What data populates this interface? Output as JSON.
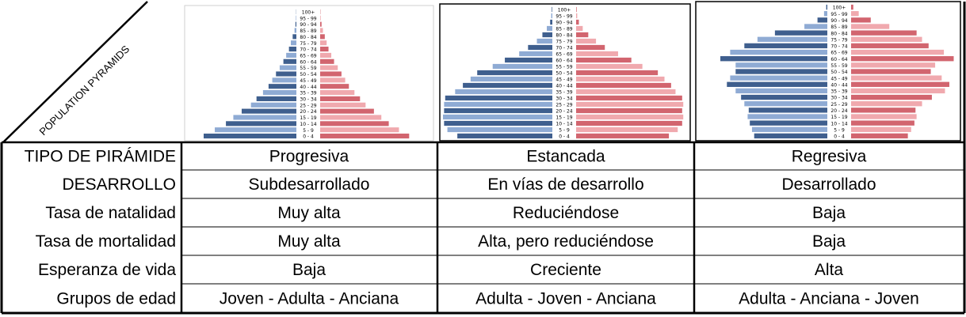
{
  "corner_label": "POPULATION PYRAMIDS",
  "table": {
    "columns": [
      "Progresiva",
      "Estancada",
      "Regresiva"
    ],
    "rows": [
      {
        "label": "TIPO DE PIRÁMIDE",
        "values": [
          "Progresiva",
          "Estancada",
          "Regresiva"
        ]
      },
      {
        "label": "DESARROLLO",
        "values": [
          "Subdesarrollado",
          "En vías de desarrollo",
          "Desarrollado"
        ]
      },
      {
        "label": "Tasa de natalidad",
        "values": [
          "Muy alta",
          "Reduciéndose",
          "Baja"
        ]
      },
      {
        "label": "Tasa de mortalidad",
        "values": [
          "Muy alta",
          "Alta, pero reduciéndose",
          "Baja"
        ]
      },
      {
        "label": "Esperanza de vida",
        "values": [
          "Baja",
          "Creciente",
          "Alta"
        ]
      },
      {
        "label": "Grupos de edad",
        "values": [
          "Joven - Adulta - Anciana",
          "Adulta - Joven - Anciana",
          "Adulta - Anciana - Joven"
        ]
      }
    ]
  },
  "colors": {
    "male_dark": "#3f5f8e",
    "male_light": "#8fabd4",
    "female_dark": "#d2656f",
    "female_light": "#f0a9ae"
  },
  "chart_data": [
    {
      "type": "bar",
      "orientation": "horizontal-pyramid",
      "categories": [
        "0 - 4",
        "5 - 9",
        "10 - 14",
        "15 - 19",
        "20 - 24",
        "25 - 29",
        "30 - 34",
        "35 - 39",
        "40 - 44",
        "45 - 49",
        "50 - 54",
        "55 - 59",
        "60 - 64",
        "65 - 69",
        "70 - 74",
        "75 - 79",
        "80 - 84",
        "85 - 89",
        "90 - 94",
        "95 - 99",
        "100+"
      ],
      "series": [
        {
          "values": [
            10.0,
            8.8,
            7.6,
            6.8,
            5.9,
            4.9,
            4.3,
            3.6,
            3.0,
            2.6,
            2.2,
            1.8,
            1.4,
            1.1,
            0.8,
            0.6,
            0.4,
            0.2,
            0.1,
            0.05,
            0.02
          ]
        },
        {
          "values": [
            9.6,
            8.5,
            7.4,
            6.6,
            5.8,
            4.9,
            4.3,
            3.7,
            3.1,
            2.7,
            2.3,
            1.9,
            1.5,
            1.2,
            0.9,
            0.7,
            0.5,
            0.3,
            0.15,
            0.06,
            0.03
          ]
        }
      ]
    },
    {
      "type": "bar",
      "orientation": "horizontal-pyramid",
      "categories": [
        "0 - 4",
        "5 - 9",
        "10 - 14",
        "15 - 19",
        "20 - 24",
        "25 - 29",
        "30 - 34",
        "35 - 39",
        "40 - 44",
        "45 - 49",
        "50 - 54",
        "55 - 59",
        "60 - 64",
        "65 - 69",
        "70 - 74",
        "75 - 79",
        "80 - 84",
        "85 - 89",
        "90 - 94",
        "95 - 99",
        "100+"
      ],
      "series": [
        {
          "values": [
            8.6,
            9.5,
            9.8,
            9.9,
            9.8,
            9.8,
            9.7,
            8.8,
            8.1,
            7.4,
            6.8,
            5.4,
            4.3,
            3.0,
            2.2,
            1.4,
            0.9,
            0.5,
            0.2,
            0.1,
            0.05
          ]
        },
        {
          "values": [
            8.4,
            9.2,
            9.6,
            9.7,
            9.6,
            9.7,
            9.6,
            9.0,
            8.6,
            8.0,
            7.4,
            6.0,
            5.0,
            3.8,
            2.6,
            1.8,
            1.1,
            0.6,
            0.25,
            0.1,
            0.05
          ]
        }
      ]
    },
    {
      "type": "bar",
      "orientation": "horizontal-pyramid",
      "categories": [
        "0 - 4",
        "5 - 9",
        "10 - 14",
        "15 - 19",
        "20 - 24",
        "25 - 29",
        "30 - 34",
        "35 - 39",
        "40 - 44",
        "45 - 49",
        "50 - 54",
        "55 - 59",
        "60 - 64",
        "65 - 69",
        "70 - 74",
        "75 - 79",
        "80 - 84",
        "85 - 89",
        "90 - 94",
        "95 - 99",
        "100+"
      ],
      "series": [
        {
          "values": [
            6.7,
            6.9,
            7.1,
            7.3,
            7.2,
            7.6,
            7.9,
            8.4,
            9.2,
            8.9,
            8.4,
            8.4,
            9.8,
            8.9,
            7.6,
            6.4,
            4.8,
            2.1,
            0.9,
            0.3,
            0.1
          ]
        },
        {
          "values": [
            5.2,
            5.5,
            5.8,
            6.0,
            5.9,
            6.5,
            7.4,
            8.6,
            9.0,
            8.3,
            7.3,
            7.7,
            9.4,
            8.5,
            7.1,
            6.5,
            6.0,
            3.5,
            1.8,
            0.7,
            0.2
          ]
        }
      ]
    }
  ]
}
